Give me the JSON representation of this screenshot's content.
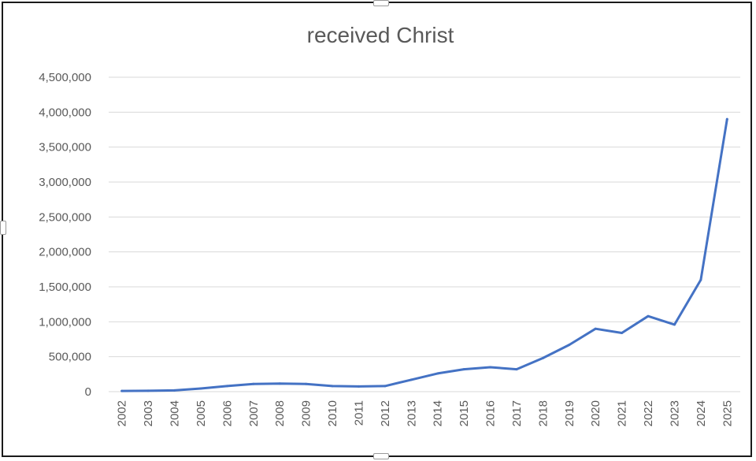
{
  "chart_data": {
    "type": "line",
    "title": "received Christ",
    "xlabel": "",
    "ylabel": "",
    "categories": [
      "2002",
      "2003",
      "2004",
      "2005",
      "2006",
      "2007",
      "2008",
      "2009",
      "2010",
      "2011",
      "2012",
      "2013",
      "2014",
      "2015",
      "2016",
      "2017",
      "2018",
      "2019",
      "2020",
      "2021",
      "2022",
      "2023",
      "2024",
      "2025"
    ],
    "series": [
      {
        "values": [
          10000,
          12000,
          18000,
          45000,
          80000,
          110000,
          115000,
          110000,
          80000,
          75000,
          80000,
          170000,
          260000,
          320000,
          350000,
          320000,
          480000,
          670000,
          900000,
          840000,
          1080000,
          960000,
          1600000,
          3900000
        ]
      }
    ],
    "yticks": [
      "0",
      "500,000",
      "1,000,000",
      "1,500,000",
      "2,000,000",
      "2,500,000",
      "3,000,000",
      "3,500,000",
      "4,000,000",
      "4,500,000"
    ],
    "ylim": [
      0,
      4500000
    ],
    "grid": true,
    "legend": "none",
    "colors": {
      "line": "#4472c4",
      "grid": "#d9d9d9",
      "text": "#595959"
    }
  }
}
